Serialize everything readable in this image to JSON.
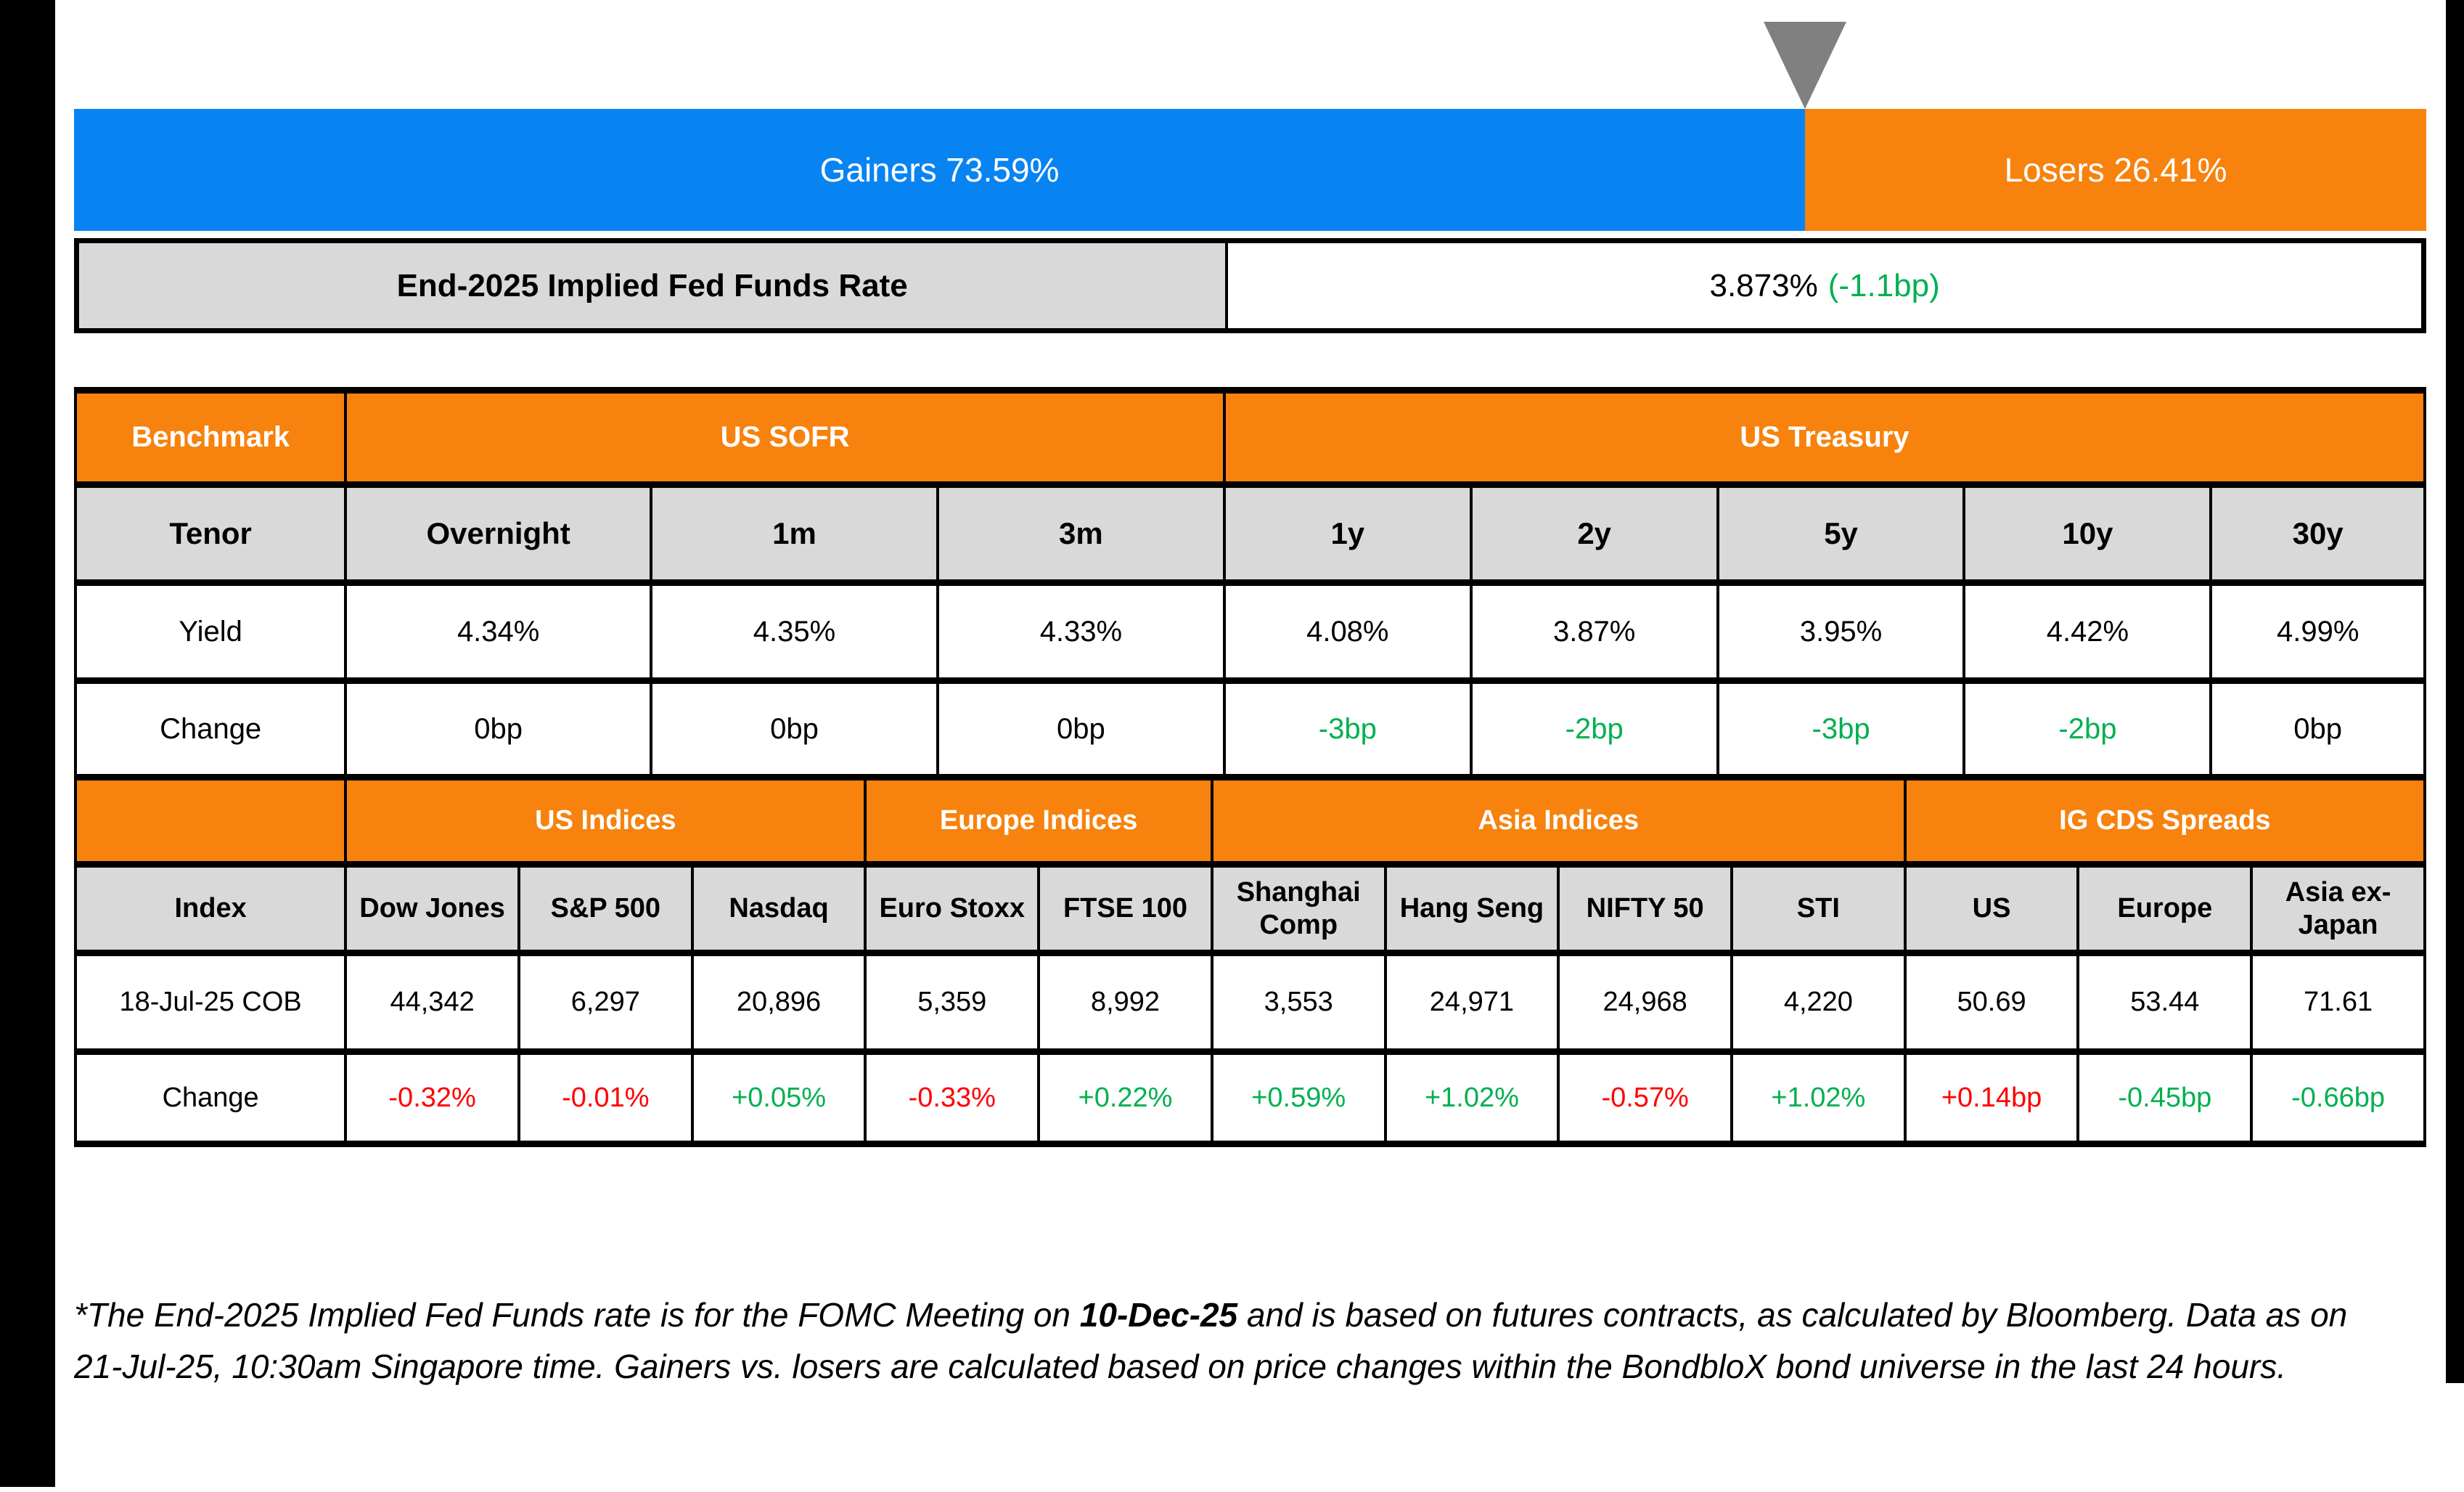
{
  "colors": {
    "gainers_blue": "#0884F2",
    "losers_orange": "#F7820D",
    "positive_green": "#00B050",
    "negative_red": "#FF0000",
    "header_gray": "#D9D9D9",
    "triangle_gray": "#808080"
  },
  "top_bar": {
    "gainers_label": "Gainers 73.59%",
    "losers_label": "Losers 26.41%",
    "gainers_pct": 73.59,
    "losers_pct": 26.41
  },
  "fed_funds": {
    "label": "End-2025 Implied Fed Funds Rate",
    "value": "3.873%",
    "change": "(-1.1bp)"
  },
  "benchmark": {
    "corner": "Benchmark",
    "group_sofr": "US SOFR",
    "group_treasury": "US Treasury",
    "tenor": {
      "label": "Tenor",
      "values": [
        "Overnight",
        "1m",
        "3m",
        "1y",
        "2y",
        "5y",
        "10y",
        "30y"
      ]
    },
    "yield": {
      "label": "Yield",
      "values": [
        "4.34%",
        "4.35%",
        "4.33%",
        "4.08%",
        "3.87%",
        "3.95%",
        "4.42%",
        "4.99%"
      ]
    },
    "change": {
      "label": "Change",
      "values": [
        "0bp",
        "0bp",
        "0bp",
        "-3bp",
        "-2bp",
        "-3bp",
        "-2bp",
        "0bp"
      ],
      "tones": [
        "neu",
        "neu",
        "neu",
        "pos",
        "pos",
        "pos",
        "pos",
        "neu"
      ]
    }
  },
  "indices": {
    "group_us": "US Indices",
    "group_europe": "Europe Indices",
    "group_asia": "Asia Indices",
    "group_cds": "IG CDS Spreads",
    "header_label": "Index",
    "columns": [
      "Dow Jones",
      "S&P 500",
      "Nasdaq",
      "Euro Stoxx",
      "FTSE 100",
      "Shanghai Comp",
      "Hang Seng",
      "NIFTY 50",
      "STI",
      "US",
      "Europe",
      "Asia ex-Japan"
    ],
    "cob": {
      "label": "18-Jul-25 COB",
      "values": [
        "44,342",
        "6,297",
        "20,896",
        "5,359",
        "8,992",
        "3,553",
        "24,971",
        "24,968",
        "4,220",
        "50.69",
        "53.44",
        "71.61"
      ]
    },
    "change": {
      "label": "Change",
      "values": [
        "-0.32%",
        "-0.01%",
        "+0.05%",
        "-0.33%",
        "+0.22%",
        "+0.59%",
        "+1.02%",
        "-0.57%",
        "+1.02%",
        "+0.14bp",
        "-0.45bp",
        "-0.66bp"
      ],
      "tones": [
        "neg",
        "neg",
        "pos",
        "neg",
        "pos",
        "pos",
        "pos",
        "neg",
        "pos",
        "neg",
        "pos",
        "pos"
      ]
    }
  },
  "footer": {
    "note_pre": "*The End-2025 Implied Fed Funds rate is for the FOMC Meeting on ",
    "note_bold": "10-Dec-25",
    "note_post": " and is based on futures contracts, as calculated by Bloomberg. Data as on 21-Jul-25, 10:30am Singapore time. Gainers vs. losers are calculated based on price changes within the BondbloX bond universe in the last 24 hours."
  }
}
